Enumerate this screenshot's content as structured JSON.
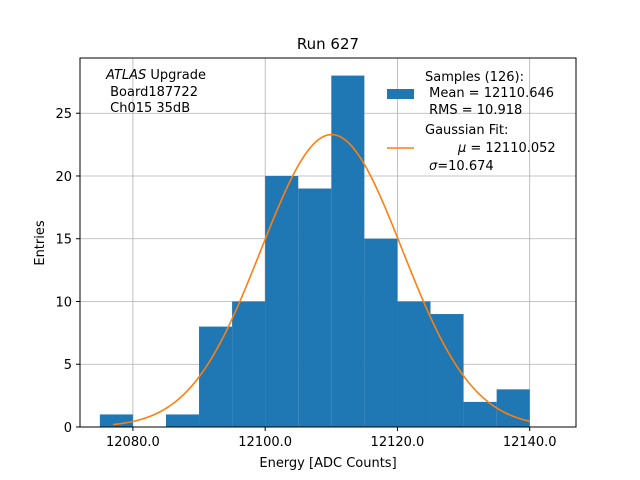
{
  "chart_data": {
    "type": "bar",
    "title": "Run 627",
    "xlabel": "Energy [ADC Counts]",
    "ylabel": "Entries",
    "xlim": [
      12072,
      12147
    ],
    "ylim": [
      0,
      29.4
    ],
    "grid": true,
    "x_ticks": [
      12080.0,
      12100.0,
      12120.0,
      12140.0
    ],
    "x_tick_labels": [
      "12080.0",
      "12100.0",
      "12120.0",
      "12140.0"
    ],
    "y_ticks": [
      0,
      5,
      10,
      15,
      20,
      25
    ],
    "y_tick_labels": [
      "0",
      "5",
      "10",
      "15",
      "20",
      "25"
    ],
    "histogram": {
      "bin_edges": [
        12075,
        12080,
        12085,
        12090,
        12095,
        12100,
        12105,
        12110,
        12115,
        12120,
        12125,
        12130,
        12135,
        12140
      ],
      "counts": [
        1,
        0,
        1,
        8,
        10,
        20,
        19,
        28,
        15,
        10,
        9,
        2,
        3
      ],
      "color": "#1f77b4"
    },
    "fit": {
      "type": "gaussian",
      "mu": 12110.052,
      "sigma": 10.674,
      "peak": 23.3,
      "x_range": [
        12077,
        12140
      ],
      "color": "#ff7f0e"
    },
    "annotation": {
      "line1_italic": "ATLAS",
      "line1_rest": " Upgrade",
      "line2": " Board187722",
      "line3": " Ch015 35dB"
    },
    "legend": {
      "placement": "top-right",
      "samples_title": "Samples (126):",
      "samples_mean": " Mean = 12110.646",
      "samples_rms": " RMS = 10.918",
      "fit_title": "Gaussian Fit:",
      "fit_mu_symbol": "μ",
      "fit_mu_value": " = 12110.052",
      "fit_sigma_symbol": "σ",
      "fit_sigma_value": "=10.674"
    }
  }
}
